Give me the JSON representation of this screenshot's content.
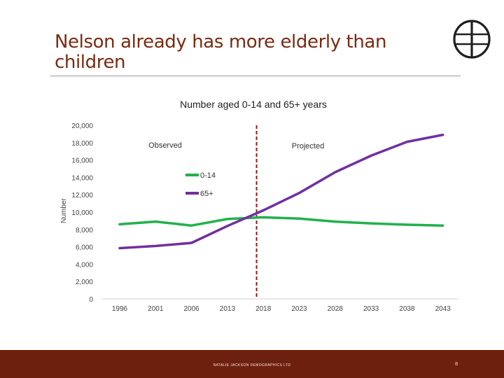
{
  "slide": {
    "title": "Nelson already has more elderly than\nchildren",
    "footer": "NATALIE JACKSON DEMOGRAPHICS LTD",
    "page_number": "8"
  },
  "colors": {
    "brand": "#7a2b12",
    "footer_bg": "#6e200e",
    "series_0_14": "#22b14c",
    "series_65_plus": "#7030a0",
    "divider": "#8b1a1a"
  },
  "icons": {
    "logo": "globe-icon"
  },
  "chart_data": {
    "type": "line",
    "title": "Number aged 0-14 and 65+ years",
    "xlabel": "",
    "ylabel": "Number",
    "categories": [
      "1996",
      "2001",
      "2006",
      "2013",
      "2018",
      "2023",
      "2028",
      "2033",
      "2038",
      "2043"
    ],
    "ylim": [
      0,
      20000
    ],
    "yticks": [
      "0",
      "2,000",
      "4,000",
      "6,000",
      "8,000",
      "10,000",
      "12,000",
      "14,000",
      "16,000",
      "18,000",
      "20,000"
    ],
    "ytick_values": [
      0,
      2000,
      4000,
      6000,
      8000,
      10000,
      12000,
      14000,
      16000,
      18000,
      20000
    ],
    "grid": false,
    "legend": "center",
    "series": [
      {
        "name": "0-14",
        "values": [
          8600,
          8900,
          8450,
          9200,
          9400,
          9250,
          8900,
          8700,
          8550,
          8450
        ]
      },
      {
        "name": "65+",
        "values": [
          5850,
          6100,
          6450,
          8400,
          10200,
          12200,
          14600,
          16500,
          18100,
          18900
        ]
      }
    ],
    "annotations": [
      "Observed",
      "Projected"
    ],
    "divider_between": [
      "2013",
      "2018"
    ]
  }
}
